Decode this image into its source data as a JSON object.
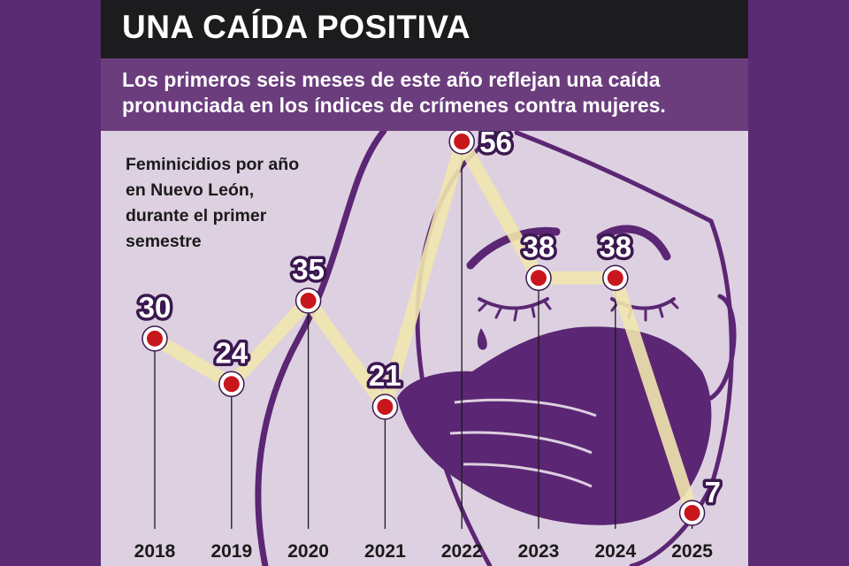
{
  "header": {
    "title": "UNA CAÍDA POSITIVA",
    "subtitle": "Los primeros seis meses de este año reflejan una caída pronunciada en los índices de crímenes contra mujeres."
  },
  "colors": {
    "page_background": "#5a2a72",
    "panel_background": "#ddd0e1",
    "title_bar": "#1c1b1d",
    "subtitle_bar": "#6b3d7d",
    "illustration": "#5b2673",
    "line": "#f1e6ae",
    "marker": "#c8161d",
    "label_text": "#ffffff",
    "label_outline": "#3b1850"
  },
  "chart_data": {
    "type": "line",
    "subtitle_lines": [
      "Feminicidios por año",
      "en Nuevo León,",
      "durante el primer",
      "semestre"
    ],
    "categories": [
      "2018",
      "2019",
      "2020",
      "2021",
      "2022",
      "2023",
      "2024",
      "2025"
    ],
    "values": [
      30,
      24,
      35,
      21,
      56,
      38,
      38,
      7
    ],
    "value_labels": [
      "30",
      "24",
      "35",
      "21",
      "56",
      "38",
      "38",
      "7"
    ],
    "ylim": [
      7,
      56
    ],
    "grid": false,
    "legend": "none",
    "background_illustration": "woman-face-covered-by-hand"
  }
}
